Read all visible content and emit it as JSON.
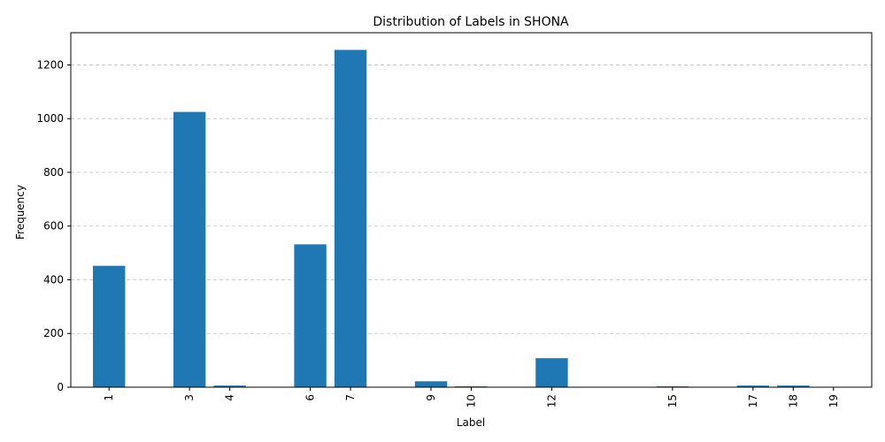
{
  "chart_data": {
    "type": "bar",
    "title": "Distribution of Labels in SHONA",
    "xlabel": "Label",
    "ylabel": "Frequency",
    "x": [
      1,
      3,
      4,
      6,
      7,
      9,
      10,
      12,
      15,
      17,
      18,
      19
    ],
    "tick_labels": [
      "1",
      "3",
      "4",
      "6",
      "7",
      "9",
      "10",
      "12",
      "15",
      "17",
      "18",
      "19"
    ],
    "values": [
      452,
      1025,
      6,
      532,
      1256,
      22,
      3,
      108,
      3,
      6,
      6,
      1
    ],
    "xlim": [
      0.05,
      19.95
    ],
    "ylim": [
      0,
      1320
    ],
    "yticks": [
      0,
      200,
      400,
      600,
      800,
      1000,
      1200
    ],
    "grid": "y-dashed",
    "bar_color": "#1f77b4",
    "x_tick_rotation": "vertical"
  }
}
